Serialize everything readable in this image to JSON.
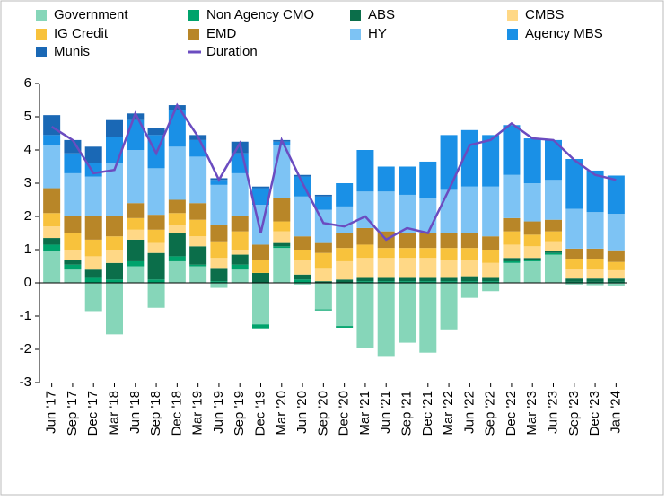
{
  "chart_data": {
    "type": "bar",
    "stacked": true,
    "categories": [
      "Jun '17",
      "Sep '17",
      "Dec '17",
      "Mar '18",
      "Jun '18",
      "Sep '18",
      "Dec '18",
      "Mar '19",
      "Jun '19",
      "Sep '19",
      "Dec '19",
      "Mar '20",
      "Jun '20",
      "Sep '20",
      "Dec '20",
      "Mar '21",
      "Jun '21",
      "Sep '21",
      "Dec '21",
      "Mar '22",
      "Jun '22",
      "Sep '22",
      "Dec '22",
      "Mar '23",
      "Jun '23",
      "Sep '23",
      "Dec '23",
      "Jan '24"
    ],
    "series": [
      {
        "name": "Government",
        "color": "#86d6b9",
        "values": [
          0.95,
          0.4,
          -0.85,
          -1.55,
          0.5,
          -0.75,
          0.65,
          0.5,
          -0.15,
          0.4,
          -1.25,
          1.05,
          -0.05,
          -0.8,
          -1.3,
          -1.95,
          -2.2,
          -1.8,
          -2.1,
          -1.4,
          -0.45,
          -0.25,
          0.6,
          0.65,
          0.85,
          -0.05,
          -0.07,
          -0.08
        ]
      },
      {
        "name": "Non Agency CMO",
        "color": "#00a36c",
        "values": [
          0.2,
          0.15,
          0.15,
          0.1,
          0.15,
          0.1,
          0.15,
          0.05,
          0.05,
          0.15,
          -0.12,
          0.05,
          0.1,
          -0.03,
          -0.05,
          0.05,
          0.05,
          0.05,
          0.05,
          0.05,
          0.05,
          0.05,
          0.05,
          0.05,
          0.05,
          0.03,
          0.03,
          0.03
        ]
      },
      {
        "name": "ABS",
        "color": "#0b6e4a",
        "values": [
          0.2,
          0.15,
          0.25,
          0.5,
          0.65,
          0.8,
          0.7,
          0.55,
          0.4,
          0.3,
          0.3,
          0.1,
          0.15,
          0.05,
          0.1,
          0.1,
          0.1,
          0.1,
          0.1,
          0.1,
          0.15,
          0.1,
          0.1,
          0.05,
          0.05,
          0.1,
          0.1,
          0.1
        ]
      },
      {
        "name": "CMBS",
        "color": "#ffd886",
        "values": [
          0.35,
          0.3,
          0.4,
          0.4,
          0.3,
          0.3,
          0.25,
          0.3,
          0.3,
          0.15,
          0,
          0.35,
          0.45,
          0.4,
          0.55,
          0.6,
          0.6,
          0.6,
          0.6,
          0.55,
          0.5,
          0.45,
          0.4,
          0.35,
          0.3,
          0.3,
          0.3,
          0.25
        ]
      },
      {
        "name": "IG Credit",
        "color": "#f8c23c",
        "values": [
          0.4,
          0.5,
          0.5,
          0.4,
          0.35,
          0.4,
          0.35,
          0.5,
          0.5,
          0.55,
          0.4,
          0.3,
          0.3,
          0.45,
          0.4,
          0.4,
          0.3,
          0.3,
          0.3,
          0.35,
          0.35,
          0.4,
          0.4,
          0.35,
          0.3,
          0.3,
          0.3,
          0.25
        ]
      },
      {
        "name": "EMD",
        "color": "#b88628",
        "values": [
          0.75,
          0.5,
          0.7,
          0.6,
          0.45,
          0.45,
          0.4,
          0.5,
          0.5,
          0.45,
          0.45,
          0.7,
          0.4,
          0.3,
          0.45,
          0.5,
          0.5,
          0.45,
          0.45,
          0.45,
          0.45,
          0.4,
          0.4,
          0.4,
          0.35,
          0.3,
          0.3,
          0.35
        ]
      },
      {
        "name": "HY",
        "color": "#7dc3f4",
        "values": [
          1.3,
          1.3,
          1.2,
          1.6,
          1.6,
          1.4,
          1.6,
          1.4,
          1.2,
          1.3,
          1.2,
          1.6,
          1.2,
          1.0,
          0.8,
          1.1,
          1.2,
          1.15,
          1.05,
          1.3,
          1.4,
          1.5,
          1.3,
          1.15,
          1.2,
          1.2,
          1.1,
          1.1
        ]
      },
      {
        "name": "Agency MBS",
        "color": "#1a90e6",
        "values": [
          0.3,
          0.6,
          0.4,
          0.8,
          0.9,
          1.0,
          1.1,
          0.5,
          0.15,
          0.6,
          0.5,
          0.1,
          0.6,
          0.4,
          0.7,
          1.25,
          0.75,
          0.85,
          1.1,
          1.65,
          1.7,
          1.55,
          1.5,
          1.35,
          1.2,
          1.5,
          1.25,
          1.15
        ]
      },
      {
        "name": "Munis",
        "color": "#1a68b5",
        "values": [
          0.6,
          0.4,
          0.5,
          0.5,
          0.2,
          0.2,
          0.15,
          0.15,
          0.05,
          0.35,
          0.05,
          0.05,
          0.05,
          0.05,
          0,
          0,
          0,
          0,
          0,
          0,
          0,
          0,
          0,
          0,
          0,
          0,
          0,
          0
        ]
      },
      {
        "name": "Duration",
        "color": "#6b4cc0",
        "type": "line",
        "values": [
          4.7,
          4.3,
          3.3,
          3.4,
          5.1,
          3.9,
          5.35,
          4.4,
          3.1,
          4.2,
          1.5,
          4.3,
          3.0,
          1.8,
          1.7,
          2.0,
          1.3,
          1.65,
          1.5,
          2.8,
          4.15,
          4.3,
          4.8,
          4.35,
          4.3,
          3.7,
          3.25,
          3.1
        ]
      }
    ],
    "ylim": [
      -3,
      6
    ],
    "yticks": [
      -3,
      -2,
      -1,
      0,
      1,
      2,
      3,
      4,
      5,
      6
    ],
    "grid": false
  }
}
